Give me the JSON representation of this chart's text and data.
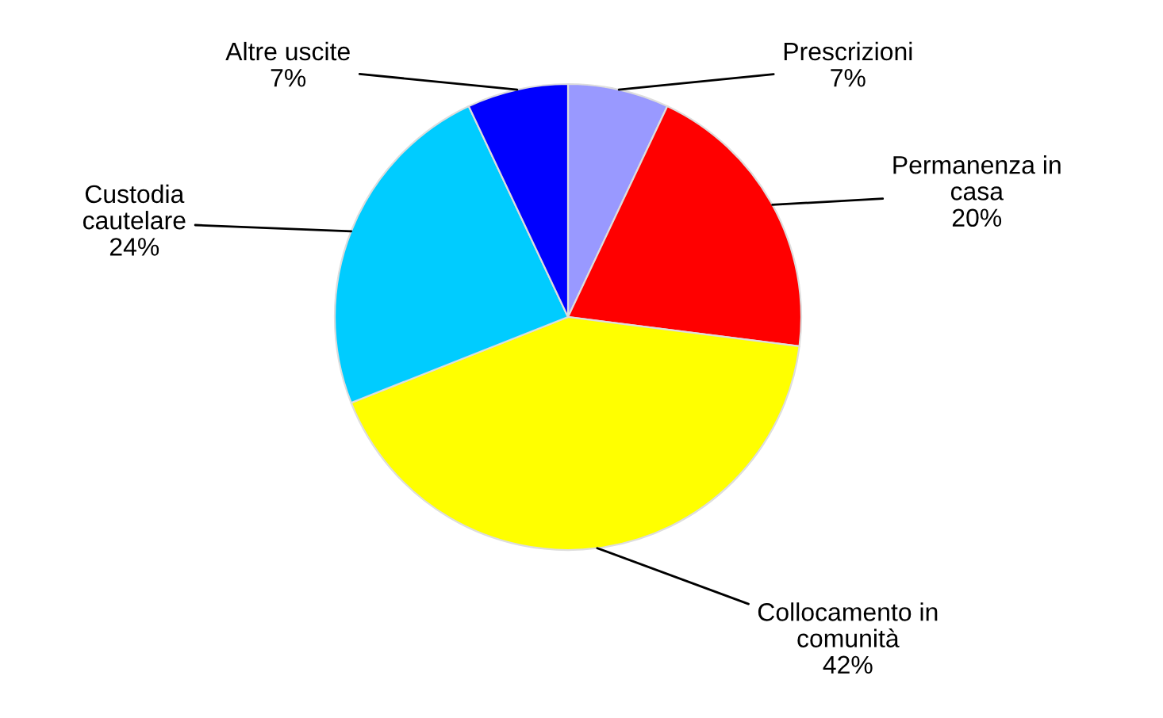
{
  "chart_data": {
    "type": "pie",
    "categories": [
      "Prescrizioni",
      "Permanenza in\ncasa",
      "Collocamento in\ncomunità",
      "Custodia\ncautelare",
      "Altre uscite"
    ],
    "values": [
      7,
      20,
      42,
      24,
      7
    ],
    "value_labels": [
      "7%",
      "20%",
      "42%",
      "24%",
      "7%"
    ],
    "colors": [
      "#9999ff",
      "#ff0000",
      "#ffff00",
      "#00ccff",
      "#0000ff"
    ],
    "legend": false
  }
}
